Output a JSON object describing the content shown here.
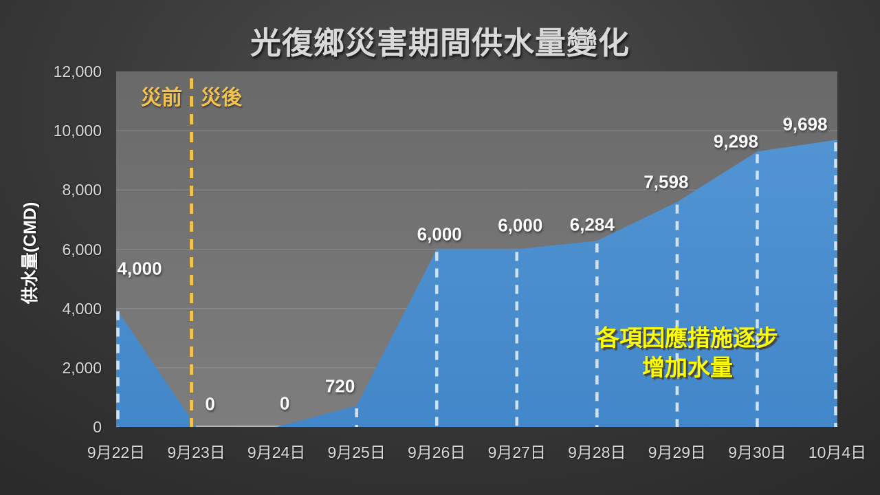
{
  "title": "光復鄉災害期間供水量變化",
  "chart_data": {
    "type": "area",
    "title": "光復鄉災害期間供水量變化",
    "categories": [
      "9月22日",
      "9月23日",
      "9月24日",
      "9月25日",
      "9月26日",
      "9月27日",
      "9月28日",
      "9月29日",
      "9月30日",
      "10月4日"
    ],
    "values": [
      4000,
      0,
      0,
      720,
      6000,
      6000,
      6284,
      7598,
      9298,
      9698
    ],
    "data_labels": [
      "4,000",
      "0",
      "0",
      "720",
      "6,000",
      "6,000",
      "6,284",
      "7,598",
      "9,298",
      "9,698"
    ],
    "xlabel": "",
    "ylabel": "供水量(CMD)",
    "ylim": [
      0,
      12000
    ],
    "ytick_step": 2000,
    "ytick_labels": [
      "0",
      "2,000",
      "4,000",
      "6,000",
      "8,000",
      "10,000",
      "12,000"
    ],
    "grid": true,
    "legend": false,
    "series_name": "供水量",
    "annotations": {
      "pre_label": "災前",
      "post_label": "災後",
      "divider_between": [
        "9月22日",
        "9月23日"
      ],
      "note_line1": "各項因應措施逐步",
      "note_line2": "增加水量"
    }
  },
  "colors": {
    "area_fill_top": "#5294d3",
    "area_fill_bottom": "#4287c9",
    "drop_line": "#cfe2f3",
    "divider_yellow": "#f2c14e",
    "phase_label_yellow": "#f2c14e",
    "note_yellow": "#fdff00",
    "tick_text": "#d9d9d9",
    "data_label_text": "#fdfdfd",
    "gridline": "rgba(255,255,255,0.14)"
  }
}
